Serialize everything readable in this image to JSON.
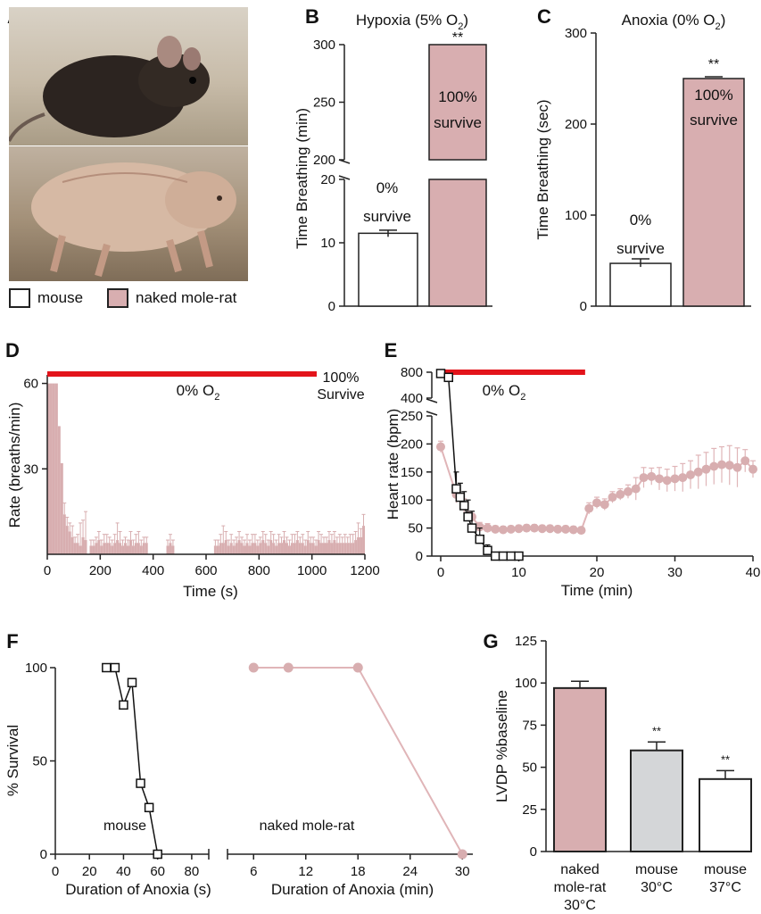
{
  "panels": {
    "A": {
      "label": "A",
      "images": [
        "mouse-photo",
        "naked-mole-rat-photo"
      ],
      "legend": [
        {
          "label": "mouse",
          "color": "#ffffff"
        },
        {
          "label": "naked mole-rat",
          "color": "#d8aeb0"
        }
      ]
    }
  },
  "colors": {
    "nmr": "#d8aeb0",
    "nmr_line": "#e0b5b8",
    "mouse": "#ffffff",
    "mouse30": "#d4d6d8",
    "red": "#e3141b",
    "axis": "#222222"
  },
  "chart_data": [
    {
      "id": "B",
      "panel_label": "B",
      "type": "bar",
      "title": "Hypoxia (5% O",
      "title_sub": "2",
      "title_end": ")",
      "ylabel": "Time Breathing (min)",
      "broken_axis": true,
      "ylim_lower": [
        0,
        20
      ],
      "ylim_upper": [
        200,
        300
      ],
      "yticks_lower": [
        "0",
        "10",
        "20"
      ],
      "yticks_upper": [
        "200",
        "250",
        "300"
      ],
      "categories": [
        "mouse",
        "naked mole-rat"
      ],
      "values": [
        11.5,
        300
      ],
      "errors": [
        0.5,
        0
      ],
      "bar_labels": [
        [
          "0%",
          "survive"
        ],
        [
          "100%",
          "survive"
        ]
      ],
      "significance": [
        "",
        "**"
      ]
    },
    {
      "id": "C",
      "panel_label": "C",
      "type": "bar",
      "title": "Anoxia (0% O",
      "title_sub": "2",
      "title_end": ")",
      "ylabel": "Time Breathing (sec)",
      "ylim": [
        0,
        300
      ],
      "yticks": [
        "0",
        "100",
        "200",
        "300"
      ],
      "categories": [
        "mouse",
        "naked mole-rat"
      ],
      "values": [
        47,
        250
      ],
      "errors": [
        5,
        2
      ],
      "bar_labels": [
        [
          "0%",
          "survive"
        ],
        [
          "100%",
          "survive"
        ]
      ],
      "significance": [
        "",
        "**"
      ]
    },
    {
      "id": "D",
      "panel_label": "D",
      "type": "bar",
      "xlabel": "Time (s)",
      "ylabel": "Rate (breaths/min)",
      "xlim": [
        0,
        1200
      ],
      "ylim": [
        0,
        63
      ],
      "xticks": [
        "0",
        "200",
        "400",
        "600",
        "800",
        "1000",
        "1200"
      ],
      "yticks": [
        "30",
        "60"
      ],
      "annotation_o2": "0% O",
      "annotation_o2_sub": "2",
      "annotation_survive": [
        "100%",
        "Survive"
      ],
      "bar_width_s": 10,
      "x": [
        0,
        10,
        20,
        30,
        40,
        50,
        60,
        70,
        80,
        90,
        100,
        110,
        120,
        130,
        140,
        160,
        170,
        180,
        190,
        200,
        210,
        220,
        230,
        240,
        250,
        260,
        270,
        280,
        290,
        300,
        310,
        320,
        330,
        340,
        350,
        360,
        370,
        450,
        460,
        470,
        630,
        640,
        650,
        660,
        670,
        680,
        690,
        700,
        710,
        720,
        730,
        740,
        750,
        760,
        770,
        780,
        790,
        800,
        810,
        820,
        830,
        840,
        850,
        860,
        870,
        880,
        890,
        900,
        910,
        920,
        930,
        940,
        950,
        960,
        970,
        980,
        990,
        1000,
        1010,
        1020,
        1030,
        1040,
        1050,
        1060,
        1070,
        1080,
        1090,
        1100,
        1110,
        1120,
        1130,
        1140,
        1150,
        1160,
        1170,
        1180,
        1190
      ],
      "values": [
        60,
        60,
        60,
        60,
        45,
        32,
        14,
        10,
        8,
        6,
        4,
        4,
        3,
        6,
        5,
        3,
        3,
        4,
        5,
        3,
        4,
        4,
        4,
        3,
        4,
        5,
        4,
        3,
        4,
        3,
        5,
        3,
        4,
        4,
        3,
        4,
        4,
        3,
        4,
        3,
        3,
        3,
        4,
        4,
        5,
        3,
        4,
        3,
        4,
        5,
        4,
        3,
        4,
        3,
        4,
        4,
        3,
        4,
        5,
        4,
        3,
        5,
        4,
        3,
        4,
        4,
        5,
        4,
        3,
        4,
        4,
        5,
        4,
        4,
        3,
        5,
        4,
        4,
        3,
        5,
        4,
        4,
        4,
        5,
        4,
        5,
        4,
        4,
        4,
        4,
        4,
        4,
        4,
        5,
        6,
        6,
        10
      ],
      "errors": [
        0,
        0,
        0,
        0,
        0,
        0,
        4,
        3,
        3,
        4,
        2,
        3,
        8,
        6,
        10,
        2,
        2,
        2,
        3,
        2,
        3,
        3,
        2,
        2,
        3,
        6,
        4,
        2,
        2,
        2,
        3,
        2,
        3,
        4,
        2,
        2,
        2,
        2,
        3,
        2,
        2,
        2,
        3,
        6,
        3,
        2,
        3,
        2,
        2,
        3,
        2,
        2,
        3,
        2,
        3,
        3,
        2,
        2,
        3,
        3,
        2,
        3,
        3,
        2,
        3,
        2,
        3,
        2,
        2,
        3,
        3,
        3,
        2,
        3,
        2,
        3,
        2,
        2,
        2,
        3,
        3,
        2,
        2,
        3,
        3,
        3,
        2,
        3,
        2,
        3,
        2,
        3,
        3,
        3,
        5,
        3,
        4
      ]
    },
    {
      "id": "E",
      "panel_label": "E",
      "type": "line",
      "xlabel": "Time (min)",
      "ylabel": "Heart rate (bpm)",
      "xlim": [
        0,
        40
      ],
      "broken_axis": true,
      "ylim_lower": [
        0,
        250
      ],
      "ylim_upper": [
        400,
        800
      ],
      "xticks": [
        "0",
        "10",
        "20",
        "30",
        "40"
      ],
      "yticks_lower": [
        "0",
        "50",
        "100",
        "150",
        "200",
        "250"
      ],
      "yticks_upper": [
        "400",
        "800"
      ],
      "annotation_o2": "0% O",
      "annotation_o2_sub": "2",
      "anoxia_span": [
        0,
        18.5
      ],
      "series": [
        {
          "name": "naked mole-rat",
          "x": [
            0,
            2,
            3,
            4,
            5,
            6,
            7,
            8,
            9,
            10,
            11,
            12,
            13,
            14,
            15,
            16,
            17,
            18,
            19,
            20,
            21,
            22,
            23,
            24,
            25,
            26,
            27,
            28,
            29,
            30,
            31,
            32,
            33,
            34,
            35,
            36,
            37,
            38,
            39,
            40
          ],
          "y": [
            195,
            110,
            90,
            70,
            52,
            50,
            48,
            47,
            48,
            49,
            50,
            50,
            49,
            49,
            48,
            48,
            47,
            46,
            85,
            95,
            92,
            105,
            110,
            115,
            120,
            140,
            142,
            138,
            135,
            138,
            140,
            145,
            150,
            155,
            160,
            163,
            162,
            158,
            170,
            155
          ],
          "errors": [
            10,
            15,
            12,
            10,
            8,
            8,
            6,
            6,
            6,
            6,
            6,
            6,
            6,
            6,
            6,
            6,
            6,
            6,
            10,
            10,
            10,
            10,
            10,
            12,
            20,
            18,
            15,
            20,
            20,
            22,
            25,
            25,
            30,
            30,
            32,
            32,
            35,
            35,
            20,
            15
          ]
        },
        {
          "name": "mouse",
          "x": [
            0,
            1,
            2,
            2.5,
            3,
            3.5,
            4,
            5,
            6,
            7,
            8,
            9,
            10
          ],
          "y": [
            780,
            720,
            120,
            105,
            90,
            70,
            50,
            30,
            10,
            0,
            0,
            0,
            0
          ],
          "errors": [
            10,
            20,
            30,
            25,
            25,
            30,
            30,
            20,
            10,
            2,
            2,
            2,
            2
          ]
        }
      ]
    },
    {
      "id": "F",
      "panel_label": "F",
      "type": "line",
      "ylabel": "% Survival",
      "ylim": [
        0,
        100
      ],
      "yticks": [
        "0",
        "50",
        "100"
      ],
      "subplots": [
        {
          "name": "mouse",
          "xlabel": "Duration of Anoxia (s)",
          "xlim": [
            0,
            90
          ],
          "xticks": [
            "0",
            "20",
            "40",
            "60",
            "80"
          ],
          "x": [
            30,
            35,
            40,
            45,
            50,
            55,
            60
          ],
          "y": [
            100,
            100,
            80,
            92,
            38,
            25,
            0
          ]
        },
        {
          "name": "naked mole-rat",
          "xlabel": "Duration of Anoxia (min)",
          "xlim": [
            3,
            31
          ],
          "xticks": [
            "6",
            "12",
            "18",
            "24",
            "30"
          ],
          "x": [
            6,
            10,
            18,
            30
          ],
          "y": [
            100,
            100,
            100,
            0
          ]
        }
      ]
    },
    {
      "id": "G",
      "panel_label": "G",
      "type": "bar",
      "ylabel": "LVDP %baseline",
      "ylim": [
        0,
        125
      ],
      "yticks": [
        "0",
        "25",
        "50",
        "75",
        "100",
        "125"
      ],
      "categories": [
        [
          "naked",
          "mole-rat",
          "30°C"
        ],
        [
          "mouse",
          "30°C"
        ],
        [
          "mouse",
          "37°C"
        ]
      ],
      "values": [
        97,
        60,
        43
      ],
      "errors": [
        4,
        5,
        5
      ],
      "significance": [
        "",
        "**",
        "**"
      ]
    }
  ]
}
